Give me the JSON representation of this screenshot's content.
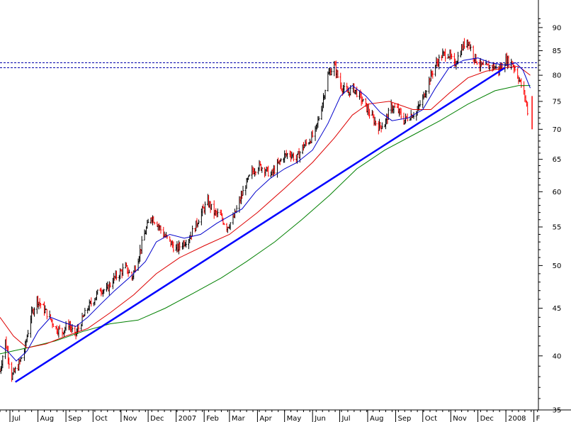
{
  "chart_data": {
    "type": "line",
    "title": "",
    "xlabel": "",
    "ylabel": "",
    "y_scale": "log",
    "ylim": [
      35,
      95
    ],
    "y_ticks": [
      35,
      40,
      45,
      50,
      55,
      60,
      65,
      70,
      75,
      80,
      85,
      90
    ],
    "x_range": [
      "2006-06-20",
      "2008-02-06"
    ],
    "x_ticks": [
      {
        "label": "Jul",
        "date": "2006-07-01"
      },
      {
        "label": "Aug",
        "date": "2006-08-01"
      },
      {
        "label": "Sep",
        "date": "2006-09-01"
      },
      {
        "label": "Oct",
        "date": "2006-10-01"
      },
      {
        "label": "Nov",
        "date": "2006-11-01"
      },
      {
        "label": "Dec",
        "date": "2006-12-01"
      },
      {
        "label": "2007",
        "date": "2007-01-01"
      },
      {
        "label": "Feb",
        "date": "2007-02-01"
      },
      {
        "label": "Mar",
        "date": "2007-03-01"
      },
      {
        "label": "Apr",
        "date": "2007-04-01"
      },
      {
        "label": "May",
        "date": "2007-05-01"
      },
      {
        "label": "Jun",
        "date": "2007-06-01"
      },
      {
        "label": "Jul",
        "date": "2007-07-01"
      },
      {
        "label": "Aug",
        "date": "2007-08-01"
      },
      {
        "label": "Sep",
        "date": "2007-09-01"
      },
      {
        "label": "Oct",
        "date": "2007-10-01"
      },
      {
        "label": "Nov",
        "date": "2007-11-01"
      },
      {
        "label": "Dec",
        "date": "2007-12-01"
      },
      {
        "label": "2008",
        "date": "2008-01-01"
      },
      {
        "label": "F",
        "date": "2008-02-01"
      }
    ],
    "grid": false,
    "colors": {
      "up_bar": "#000000",
      "down_bar": "#ff0000",
      "ma_short": "#0000cc",
      "ma_medium": "#dd0000",
      "ma_long": "#008000",
      "trendline": "#0000ff",
      "resistance": "#0000aa"
    },
    "price_path": [
      [
        "2006-06-20",
        38.5
      ],
      [
        "2006-06-26",
        41.5
      ],
      [
        "2006-07-03",
        38.0
      ],
      [
        "2006-07-10",
        39.0
      ],
      [
        "2006-07-17",
        40.5
      ],
      [
        "2006-07-24",
        44.0
      ],
      [
        "2006-07-31",
        46.0
      ],
      [
        "2006-08-07",
        45.0
      ],
      [
        "2006-08-14",
        44.0
      ],
      [
        "2006-08-21",
        42.8
      ],
      [
        "2006-08-28",
        42.5
      ],
      [
        "2006-09-04",
        43.3
      ],
      [
        "2006-09-11",
        42.0
      ],
      [
        "2006-09-18",
        43.5
      ],
      [
        "2006-09-25",
        45.0
      ],
      [
        "2006-10-02",
        46.0
      ],
      [
        "2006-10-09",
        47.2
      ],
      [
        "2006-10-16",
        47.0
      ],
      [
        "2006-10-23",
        48.3
      ],
      [
        "2006-10-30",
        49.0
      ],
      [
        "2006-11-06",
        49.8
      ],
      [
        "2006-11-13",
        48.5
      ],
      [
        "2006-11-20",
        51.0
      ],
      [
        "2006-11-27",
        54.0
      ],
      [
        "2006-12-04",
        56.5
      ],
      [
        "2006-12-11",
        55.5
      ],
      [
        "2006-12-18",
        54.0
      ],
      [
        "2006-12-25",
        53.0
      ],
      [
        "2007-01-01",
        52.0
      ],
      [
        "2007-01-08",
        52.8
      ],
      [
        "2007-01-15",
        53.5
      ],
      [
        "2007-01-22",
        55.0
      ],
      [
        "2007-01-29",
        57.0
      ],
      [
        "2007-02-05",
        58.5
      ],
      [
        "2007-02-12",
        57.0
      ],
      [
        "2007-02-19",
        56.5
      ],
      [
        "2007-02-26",
        55.0
      ],
      [
        "2007-03-05",
        56.0
      ],
      [
        "2007-03-12",
        58.5
      ],
      [
        "2007-03-19",
        61.0
      ],
      [
        "2007-03-26",
        63.0
      ],
      [
        "2007-04-02",
        64.0
      ],
      [
        "2007-04-09",
        63.5
      ],
      [
        "2007-04-16",
        62.5
      ],
      [
        "2007-04-23",
        64.0
      ],
      [
        "2007-04-30",
        65.5
      ],
      [
        "2007-05-07",
        66.0
      ],
      [
        "2007-05-14",
        65.0
      ],
      [
        "2007-05-21",
        67.0
      ],
      [
        "2007-05-28",
        68.0
      ],
      [
        "2007-06-04",
        69.5
      ],
      [
        "2007-06-11",
        74.0
      ],
      [
        "2007-06-18",
        80.0
      ],
      [
        "2007-06-25",
        82.0
      ],
      [
        "2007-07-02",
        78.0
      ],
      [
        "2007-07-09",
        76.5
      ],
      [
        "2007-07-16",
        77.5
      ],
      [
        "2007-07-23",
        76.0
      ],
      [
        "2007-07-30",
        74.0
      ],
      [
        "2007-08-06",
        72.0
      ],
      [
        "2007-08-13",
        70.5
      ],
      [
        "2007-08-20",
        71.0
      ],
      [
        "2007-08-27",
        74.0
      ],
      [
        "2007-09-03",
        73.5
      ],
      [
        "2007-09-10",
        71.5
      ],
      [
        "2007-09-17",
        72.5
      ],
      [
        "2007-09-24",
        73.0
      ],
      [
        "2007-10-01",
        75.5
      ],
      [
        "2007-10-08",
        79.0
      ],
      [
        "2007-10-15",
        82.0
      ],
      [
        "2007-10-22",
        84.0
      ],
      [
        "2007-10-29",
        84.5
      ],
      [
        "2007-11-05",
        82.0
      ],
      [
        "2007-11-12",
        85.0
      ],
      [
        "2007-11-19",
        87.5
      ],
      [
        "2007-11-26",
        84.0
      ],
      [
        "2007-12-03",
        82.0
      ],
      [
        "2007-12-10",
        81.5
      ],
      [
        "2007-12-17",
        82.0
      ],
      [
        "2007-12-24",
        81.0
      ],
      [
        "2008-01-01",
        83.0
      ],
      [
        "2008-01-08",
        82.5
      ],
      [
        "2008-01-15",
        79.5
      ],
      [
        "2008-01-22",
        76.0
      ],
      [
        "2008-01-28",
        70.5
      ]
    ],
    "ma_short": [
      [
        "2006-06-20",
        41.0
      ],
      [
        "2006-06-28",
        40.5
      ],
      [
        "2006-07-08",
        39.5
      ],
      [
        "2006-07-20",
        40.5
      ],
      [
        "2006-08-01",
        42.5
      ],
      [
        "2006-08-15",
        44.0
      ],
      [
        "2006-08-28",
        43.5
      ],
      [
        "2006-09-12",
        43.0
      ],
      [
        "2006-09-25",
        44.0
      ],
      [
        "2006-10-10",
        45.5
      ],
      [
        "2006-10-25",
        47.0
      ],
      [
        "2006-11-10",
        48.5
      ],
      [
        "2006-11-28",
        50.5
      ],
      [
        "2006-12-10",
        53.0
      ],
      [
        "2006-12-25",
        54.0
      ],
      [
        "2007-01-10",
        53.5
      ],
      [
        "2007-01-28",
        54.0
      ],
      [
        "2007-02-15",
        55.5
      ],
      [
        "2007-03-01",
        56.5
      ],
      [
        "2007-03-15",
        57.5
      ],
      [
        "2007-03-30",
        60.0
      ],
      [
        "2007-04-15",
        62.0
      ],
      [
        "2007-05-01",
        63.5
      ],
      [
        "2007-05-15",
        64.5
      ],
      [
        "2007-06-01",
        66.5
      ],
      [
        "2007-06-18",
        71.0
      ],
      [
        "2007-07-02",
        76.0
      ],
      [
        "2007-07-15",
        78.0
      ],
      [
        "2007-07-30",
        76.0
      ],
      [
        "2007-08-15",
        73.0
      ],
      [
        "2007-08-28",
        71.5
      ],
      [
        "2007-09-15",
        72.0
      ],
      [
        "2007-10-01",
        73.5
      ],
      [
        "2007-10-15",
        77.5
      ],
      [
        "2007-10-30",
        81.5
      ],
      [
        "2007-11-15",
        83.0
      ],
      [
        "2007-12-01",
        83.5
      ],
      [
        "2007-12-15",
        82.5
      ],
      [
        "2008-01-01",
        82.0
      ],
      [
        "2008-01-12",
        82.5
      ],
      [
        "2008-01-20",
        81.0
      ],
      [
        "2008-01-28",
        77.5
      ]
    ],
    "ma_medium": [
      [
        "2006-06-20",
        44.0
      ],
      [
        "2006-07-05",
        42.0
      ],
      [
        "2006-07-20",
        40.8
      ],
      [
        "2006-08-10",
        41.2
      ],
      [
        "2006-09-01",
        42.0
      ],
      [
        "2006-09-25",
        42.8
      ],
      [
        "2006-10-20",
        44.5
      ],
      [
        "2006-11-15",
        46.5
      ],
      [
        "2006-12-10",
        49.0
      ],
      [
        "2007-01-05",
        51.0
      ],
      [
        "2007-02-01",
        52.5
      ],
      [
        "2007-03-01",
        54.0
      ],
      [
        "2007-04-01",
        57.0
      ],
      [
        "2007-05-01",
        60.5
      ],
      [
        "2007-06-01",
        64.5
      ],
      [
        "2007-06-25",
        68.5
      ],
      [
        "2007-07-15",
        72.5
      ],
      [
        "2007-08-01",
        74.5
      ],
      [
        "2007-08-25",
        75.0
      ],
      [
        "2007-09-20",
        73.5
      ],
      [
        "2007-10-10",
        73.5
      ],
      [
        "2007-10-30",
        76.5
      ],
      [
        "2007-11-20",
        79.5
      ],
      [
        "2007-12-10",
        80.8
      ],
      [
        "2008-01-01",
        81.5
      ],
      [
        "2008-01-15",
        81.8
      ],
      [
        "2008-01-28",
        80.0
      ]
    ],
    "ma_long": [
      [
        "2006-06-20",
        40.2
      ],
      [
        "2006-07-20",
        40.8
      ],
      [
        "2006-08-20",
        41.5
      ],
      [
        "2006-09-20",
        42.5
      ],
      [
        "2006-10-20",
        43.3
      ],
      [
        "2006-11-20",
        43.7
      ],
      [
        "2006-12-20",
        45.0
      ],
      [
        "2007-01-20",
        46.7
      ],
      [
        "2007-02-20",
        48.5
      ],
      [
        "2007-03-20",
        50.5
      ],
      [
        "2007-04-20",
        53.0
      ],
      [
        "2007-05-20",
        56.0
      ],
      [
        "2007-06-20",
        59.5
      ],
      [
        "2007-07-20",
        63.5
      ],
      [
        "2007-08-20",
        66.5
      ],
      [
        "2007-09-20",
        69.0
      ],
      [
        "2007-10-20",
        71.5
      ],
      [
        "2007-11-20",
        74.5
      ],
      [
        "2007-12-20",
        77.0
      ],
      [
        "2008-01-15",
        78.0
      ],
      [
        "2008-01-28",
        78.0
      ]
    ],
    "trendline": [
      [
        "2006-07-07",
        37.5
      ],
      [
        "2007-12-31",
        81.5
      ]
    ],
    "resistance_lines": [
      82.5,
      81.5
    ]
  }
}
